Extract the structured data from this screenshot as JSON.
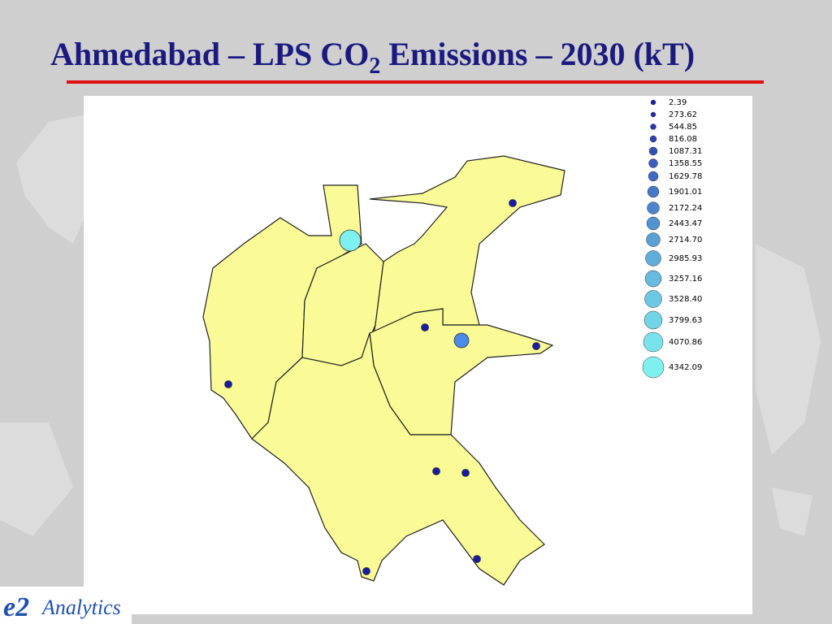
{
  "header": {
    "title": {
      "main": "Ahmedabad – LPS CO",
      "subscript": "2",
      "rest": " Emissions – 2030 (kT)"
    }
  },
  "legend": {
    "items": [
      "2.39",
      "273.62",
      "544.85",
      "816.08",
      "1087.31",
      "1358.55",
      "1629.78",
      "1901.01",
      "2172.24",
      "2443.47",
      "2714.70",
      "2985.93",
      "3257.16",
      "3528.40",
      "3799.63",
      "4070.86",
      "4342.09"
    ]
  },
  "logo": {
    "mark": "e2",
    "text": "Analytics"
  }
}
